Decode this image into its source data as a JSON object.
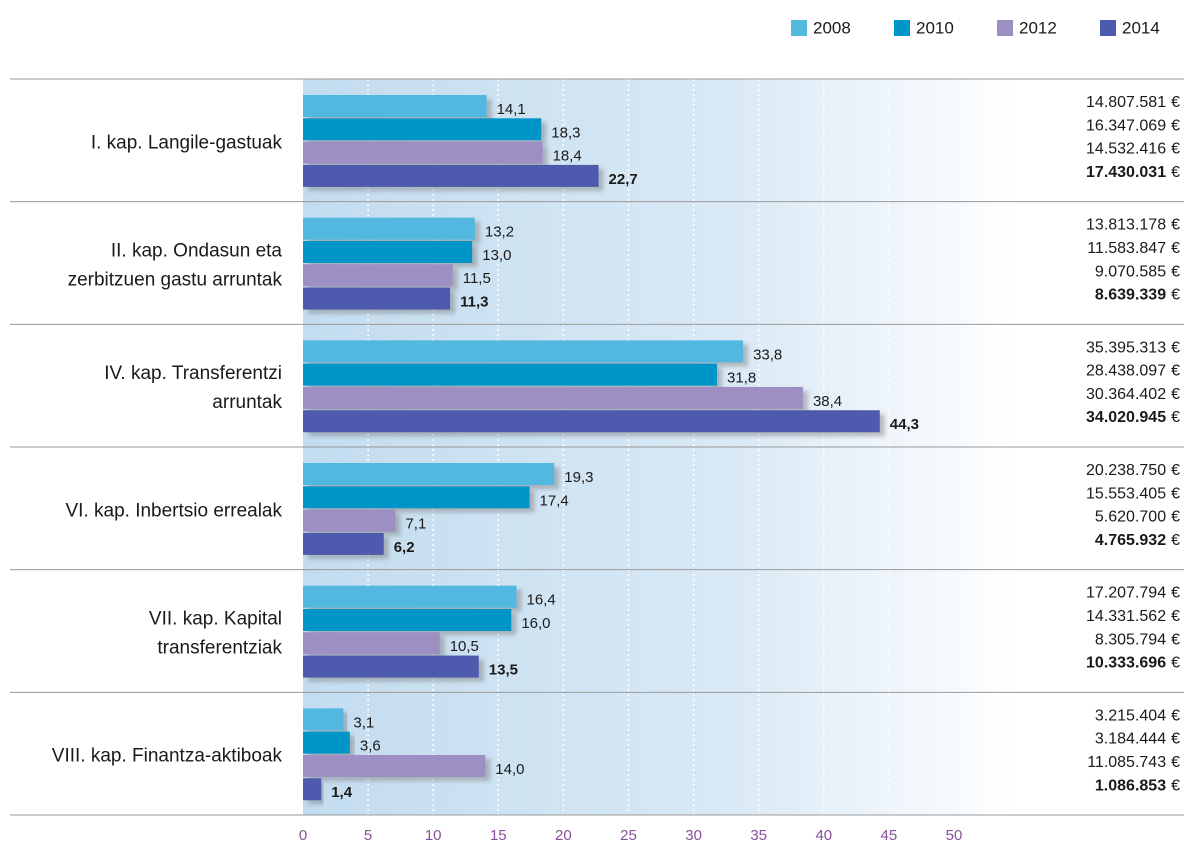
{
  "chart_data": {
    "type": "hbar",
    "categories": [
      [
        "I. kap. Langile-gastuak"
      ],
      [
        "II. kap. Ondasun eta",
        "zerbitzuen gastu arruntak"
      ],
      [
        "IV. kap. Transferentzi",
        "arruntak"
      ],
      [
        "VI. kap. Inbertsio errealak"
      ],
      [
        "VII. kap. Kapital",
        "transferentziak"
      ],
      [
        "VIII. kap. Finantza-aktiboak"
      ]
    ],
    "currency": "€",
    "series": [
      {
        "name": "2008",
        "color": "#52b8e0",
        "bold": false,
        "values": [
          14.1,
          13.2,
          33.8,
          19.3,
          16.4,
          3.1
        ],
        "value_labels": [
          "14,1",
          "13,2",
          "33,8",
          "19,3",
          "16,4",
          "3,1"
        ],
        "amounts": [
          14807581,
          13813178,
          35395313,
          20238750,
          17207794,
          3215404
        ],
        "amount_labels": [
          "14.807.581",
          "13.813.178",
          "35.395.313",
          "20.238.750",
          "17.207.794",
          "3.215.404"
        ]
      },
      {
        "name": "2010",
        "color": "#0095c8",
        "bold": false,
        "values": [
          18.3,
          13.0,
          31.8,
          17.4,
          16.0,
          3.6
        ],
        "value_labels": [
          "18,3",
          "13,0",
          "31,8",
          "17,4",
          "16,0",
          "3,6"
        ],
        "amounts": [
          16347069,
          11583847,
          28438097,
          15553405,
          14331562,
          3184444
        ],
        "amount_labels": [
          "16.347.069",
          "11.583.847",
          "28.438.097",
          "15.553.405",
          "14.331.562",
          "3.184.444"
        ]
      },
      {
        "name": "2012",
        "color": "#9d8fc2",
        "bold": false,
        "values": [
          18.4,
          11.5,
          38.4,
          7.1,
          10.5,
          14.0
        ],
        "value_labels": [
          "18,4",
          "11,5",
          "38,4",
          "7,1",
          "10,5",
          "14,0"
        ],
        "amounts": [
          14532416,
          9070585,
          30364402,
          5620700,
          8305794,
          11085743
        ],
        "amount_labels": [
          "14.532.416",
          "9.070.585",
          "30.364.402",
          "5.620.700",
          "8.305.794",
          "11.085.743"
        ]
      },
      {
        "name": "2014",
        "color": "#4d5aad",
        "bold": true,
        "values": [
          22.7,
          11.3,
          44.3,
          6.2,
          13.5,
          1.4
        ],
        "value_labels": [
          "22,7",
          "11,3",
          "44,3",
          "6,2",
          "13,5",
          "1,4"
        ],
        "amounts": [
          17430031,
          8639339,
          34020945,
          4765932,
          10333696,
          1086853
        ],
        "amount_labels": [
          "17.430.031",
          "8.639.339",
          "34.020.945",
          "4.765.932",
          "10.333.696",
          "1.086.853"
        ]
      }
    ],
    "xlim": [
      0,
      50
    ],
    "xticks": [
      0,
      5,
      10,
      15,
      20,
      25,
      30,
      35,
      40,
      45,
      50
    ],
    "grid": true
  }
}
